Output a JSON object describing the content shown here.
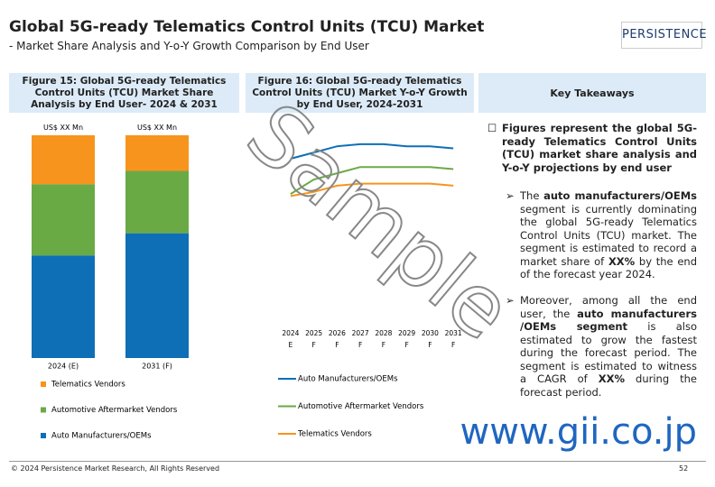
{
  "header": {
    "title": "Global 5G-ready Telematics Control Units (TCU) Market",
    "subtitle": "- Market Share Analysis and Y-o-Y Growth Comparison by End User",
    "logo": "PERSISTENCE"
  },
  "chart_data": [
    {
      "type": "stacked-bar",
      "title": "Figure 15: Global 5G-ready Telematics Control Units (TCU) Market Share Analysis by End User- 2024 & 2031",
      "categories": [
        "2024 (E)",
        "2031 (F)"
      ],
      "bar_labels": [
        "US$ XX Mn",
        "US$ XX Mn"
      ],
      "ylim": [
        0,
        100
      ],
      "series": [
        {
          "name": "Auto Manufacturers/OEMs",
          "color": "#0e6fb6",
          "values": [
            46,
            56
          ]
        },
        {
          "name": "Automotive Aftermarket Vendors",
          "color": "#6aaa45",
          "values": [
            32,
            28
          ]
        },
        {
          "name": "Telematics Vendors",
          "color": "#f7941d",
          "values": [
            22,
            16
          ]
        }
      ]
    },
    {
      "type": "line",
      "title": "Figure 16: Global 5G-ready Telematics Control Units (TCU) Market Y-o-Y Growth by End User, 2024-2031",
      "categories": [
        "2024",
        "2025",
        "2026",
        "2027",
        "2028",
        "2029",
        "2030",
        "2031"
      ],
      "category_sublabels": [
        "E",
        "F",
        "F",
        "F",
        "F",
        "F",
        "F",
        "F"
      ],
      "ylim": [
        0,
        100
      ],
      "series": [
        {
          "name": "Auto Manufacturers/OEMs",
          "color": "#0e6fb6",
          "values": [
            80,
            83,
            86,
            87,
            87,
            86,
            86,
            85
          ]
        },
        {
          "name": "Automotive Aftermarket Vendors",
          "color": "#6aaa45",
          "values": [
            63,
            70,
            73,
            76,
            76,
            76,
            76,
            75
          ]
        },
        {
          "name": "Telematics Vendors",
          "color": "#f7941d",
          "values": [
            62,
            64,
            67,
            68,
            68,
            68,
            68,
            67
          ]
        }
      ]
    }
  ],
  "takeaways": {
    "title": "Key Takeaways",
    "heading": "Figures represent the global 5G-ready Telematics Control Units (TCU) market share analysis and Y-o-Y projections by end user",
    "points": [
      [
        "The ",
        "auto manufacturers/OEMs",
        " segment is currently dominating the global 5G-ready Telematics Control Units (TCU) market. The segment is estimated to record a market share of ",
        "XX%",
        " by the end of the forecast year 2024."
      ],
      [
        "Moreover, among all the end user, the ",
        "auto manufacturers /OEMs segment",
        " is also estimated to grow the fastest during the forecast period. The segment is estimated to witness a CAGR of ",
        "XX%",
        " during the forecast period."
      ]
    ]
  },
  "watermark": "Sample",
  "site": "www.gii.co.jp",
  "footer": {
    "copyright": "© 2024 Persistence Market Research, All Rights Reserved",
    "page": "52"
  }
}
